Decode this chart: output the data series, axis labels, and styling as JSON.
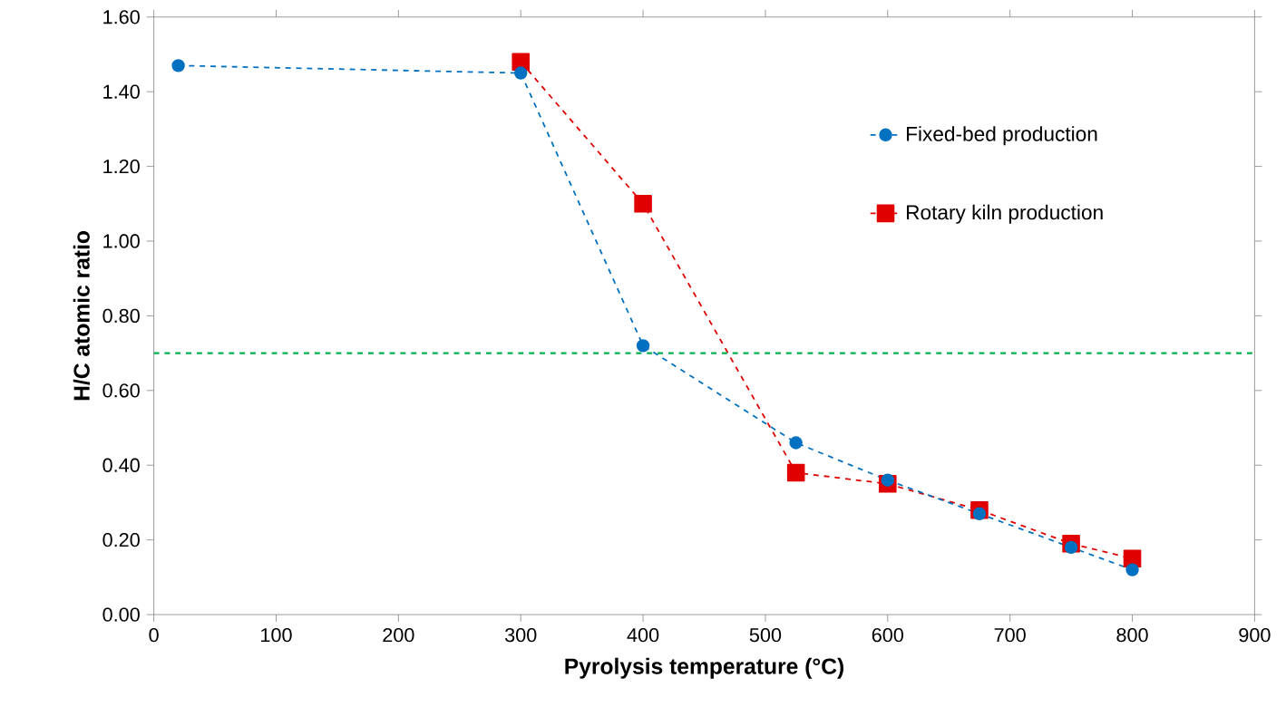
{
  "chart_data": {
    "type": "line",
    "xlabel": "Pyrolysis temperature (°C)",
    "ylabel": "H/C atomic ratio",
    "xlim": [
      0,
      900
    ],
    "xticks": [
      0,
      100,
      200,
      300,
      400,
      500,
      600,
      700,
      800,
      900
    ],
    "ylim": [
      0,
      1.6
    ],
    "yticks": [
      {
        "value": 0,
        "label": "0.00"
      },
      {
        "value": 0.2,
        "label": "0.20"
      },
      {
        "value": 0.4,
        "label": "0.40"
      },
      {
        "value": 0.6,
        "label": "0.60"
      },
      {
        "value": 0.8,
        "label": "0.80"
      },
      {
        "value": 1.0,
        "label": "1.00"
      },
      {
        "value": 1.2,
        "label": "1.20"
      },
      {
        "value": 1.4,
        "label": "1.40"
      },
      {
        "value": 1.6,
        "label": "1.60"
      }
    ],
    "grid": false,
    "legend": "right",
    "line_style": "dashed",
    "series": [
      {
        "name": "Fixed-bed production",
        "color": "#0070c0",
        "marker": "circle",
        "x": [
          20,
          300,
          400,
          525,
          600,
          675,
          750,
          800
        ],
        "values": [
          1.47,
          1.45,
          0.72,
          0.46,
          0.36,
          0.27,
          0.18,
          0.12
        ]
      },
      {
        "name": "Rotary kiln production",
        "color": "#e00000",
        "marker": "square",
        "x": [
          300,
          400,
          525,
          600,
          675,
          750,
          800
        ],
        "values": [
          1.48,
          1.1,
          0.38,
          0.35,
          0.28,
          0.19,
          0.15
        ]
      }
    ],
    "ref_lines": [
      {
        "axis": "y",
        "value": 0.7,
        "color": "#00b050",
        "line_style": "dashed"
      }
    ]
  }
}
